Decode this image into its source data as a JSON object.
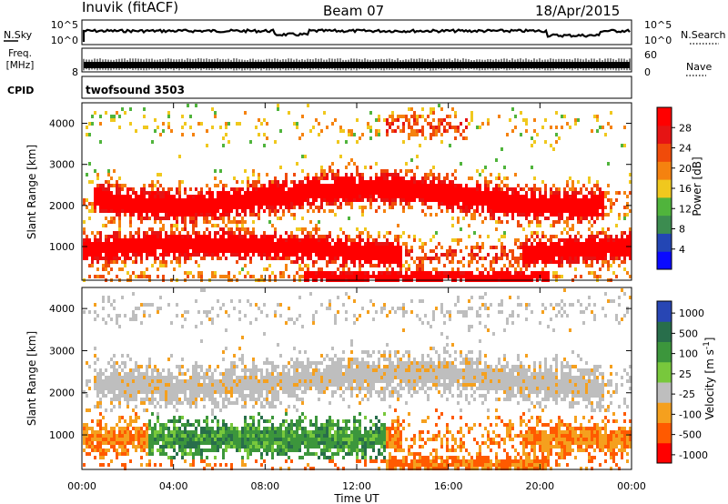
{
  "header": {
    "station": "Inuvik (fitACF)",
    "beam": "Beam 07",
    "date": "18/Apr/2015"
  },
  "noise_panel": {
    "left_label": "N.Sky",
    "right_label": "N.Search",
    "left_ticks": [
      "10^5",
      "10^0"
    ],
    "right_ticks": [
      "10^5",
      "10^0"
    ]
  },
  "freq_panel": {
    "left_label_line1": "Freq.",
    "left_label_line2": "[MHz]",
    "right_label": "Nave",
    "left_ticks": [
      "",
      "8"
    ],
    "right_ticks": [
      "60",
      "0"
    ]
  },
  "cpid_panel": {
    "label": "CPID",
    "program": "twofsound 3503"
  },
  "colors": {
    "power_scale": [
      "#0a0aff",
      "#2346b4",
      "#3c8c50",
      "#50b43c",
      "#f0c81e",
      "#f5820f",
      "#f04b0a",
      "#e61414",
      "#ff0000"
    ],
    "velocity_scale": [
      "#ff0000",
      "#ff5a00",
      "#f5a01e",
      "#bebebe",
      "#78c83c",
      "#3c963c",
      "#286e4b",
      "#2846b4"
    ]
  },
  "chart_data": [
    {
      "type": "heatmap",
      "title": "",
      "xlabel": "",
      "ylabel": "Slant Range [km]",
      "xlim": [
        "00:00",
        "00:00"
      ],
      "ylim": [
        180,
        4500
      ],
      "x_ticks": [
        "00:00",
        "04:00",
        "08:00",
        "12:00",
        "16:00",
        "20:00",
        "00:00"
      ],
      "y_ticks": [
        1000,
        2000,
        3000,
        4000
      ],
      "colorbar_label": "Power [dB]",
      "colorbar_ticks": [
        4,
        8,
        12,
        16,
        20,
        24,
        28
      ],
      "colorbar_range": [
        0,
        32
      ]
    },
    {
      "type": "heatmap",
      "title": "",
      "xlabel": "Time UT",
      "ylabel": "Slant Range [km]",
      "xlim": [
        "00:00",
        "00:00"
      ],
      "ylim": [
        180,
        4500
      ],
      "x_ticks": [
        "00:00",
        "04:00",
        "08:00",
        "12:00",
        "16:00",
        "20:00",
        "00:00"
      ],
      "y_ticks": [
        1000,
        2000,
        3000,
        4000
      ],
      "colorbar_label": "Velocity [m s^-1]",
      "colorbar_ticks": [
        1000,
        500,
        100,
        25,
        -25,
        -100,
        -500,
        -1000
      ]
    }
  ]
}
